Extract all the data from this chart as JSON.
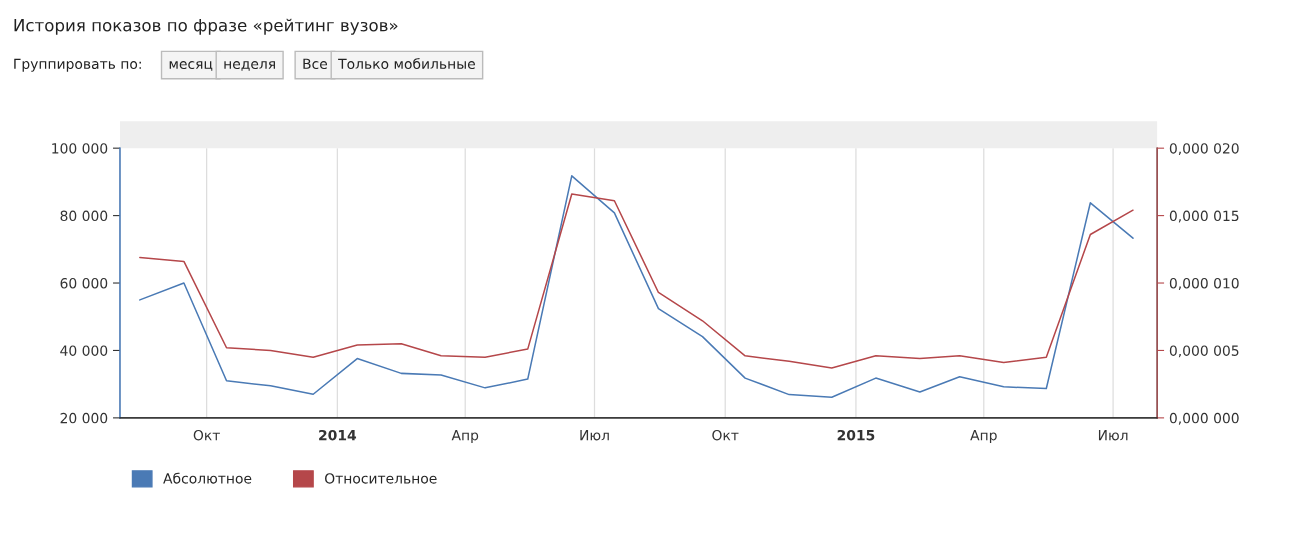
{
  "chart_data": {
    "type": "line",
    "title": "История показов по фразе «рейтинг вузов»",
    "annotations": [
      "Группировать по:",
      "месяц",
      "неделя",
      "Все",
      "Только мобильные"
    ],
    "x": [
      "2013-08-15",
      "2013-09-15",
      "2013-10-15",
      "2013-11-15",
      "2013-12-15",
      "2014-01-15",
      "2014-02-15",
      "2014-03-15",
      "2014-04-15",
      "2014-05-15",
      "2014-06-15",
      "2014-07-15",
      "2014-08-15",
      "2014-09-15",
      "2014-10-15",
      "2014-11-15",
      "2014-12-15",
      "2015-01-15",
      "2015-02-15",
      "2015-03-15",
      "2015-04-15",
      "2015-05-15",
      "2015-06-15",
      "2015-07-15"
    ],
    "series": [
      {
        "name": "Абсолютное",
        "color": "#4a7ab5",
        "values": [
          55000,
          60000,
          31000,
          29500,
          27000,
          37600,
          33200,
          32700,
          28900,
          31500,
          91800,
          80800,
          52400,
          44100,
          31800,
          26900,
          26100,
          31800,
          27700,
          32200,
          29200,
          28700,
          83800,
          73300
        ]
      },
      {
        "name": "Относительное",
        "color": "#b5474a",
        "axis": "y2",
        "values": [
          1.19e-05,
          1.16e-05,
          5.2e-06,
          5e-06,
          4.5e-06,
          5.4e-06,
          5.5e-06,
          4.6e-06,
          4.5e-06,
          5.1e-06,
          1.66e-05,
          1.61e-05,
          9.3e-06,
          7.2e-06,
          4.6e-06,
          4.2e-06,
          3.7e-06,
          4.6e-06,
          4.4e-06,
          4.6e-06,
          4.1e-06,
          4.5e-06,
          1.36e-05,
          1.54e-05
        ]
      }
    ],
    "xlim": [
      "2013-08-01",
      "2015-08-01"
    ],
    "xticks": [
      {
        "value": "2013-10-01",
        "label": "Окт"
      },
      {
        "value": "2014-01-01",
        "label": "2014"
      },
      {
        "value": "2014-04-01",
        "label": "Апр"
      },
      {
        "value": "2014-07-01",
        "label": "Июл"
      },
      {
        "value": "2014-10-01",
        "label": "Окт"
      },
      {
        "value": "2015-01-01",
        "label": "2015"
      },
      {
        "value": "2015-04-01",
        "label": "Апр"
      },
      {
        "value": "2015-07-01",
        "label": "Июл"
      }
    ],
    "ylim": [
      20000,
      100000
    ],
    "yticks": [
      {
        "value": 20000,
        "label": "20 000"
      },
      {
        "value": 40000,
        "label": "40 000"
      },
      {
        "value": 60000,
        "label": "60 000"
      },
      {
        "value": 80000,
        "label": "80 000"
      },
      {
        "value": 100000,
        "label": "100 000"
      }
    ],
    "y2lim": [
      0,
      2e-05
    ],
    "y2ticks": [
      {
        "value": 0,
        "label": "0,000 000"
      },
      {
        "value": 5e-06,
        "label": "0,000 005"
      },
      {
        "value": 1e-05,
        "label": "0,000 010"
      },
      {
        "value": 1.5e-05,
        "label": "0,000 015"
      },
      {
        "value": 2e-05,
        "label": "0,000 020"
      }
    ],
    "grid": "x",
    "legend": "bottom left",
    "marker": "none",
    "line_style": "solid"
  }
}
